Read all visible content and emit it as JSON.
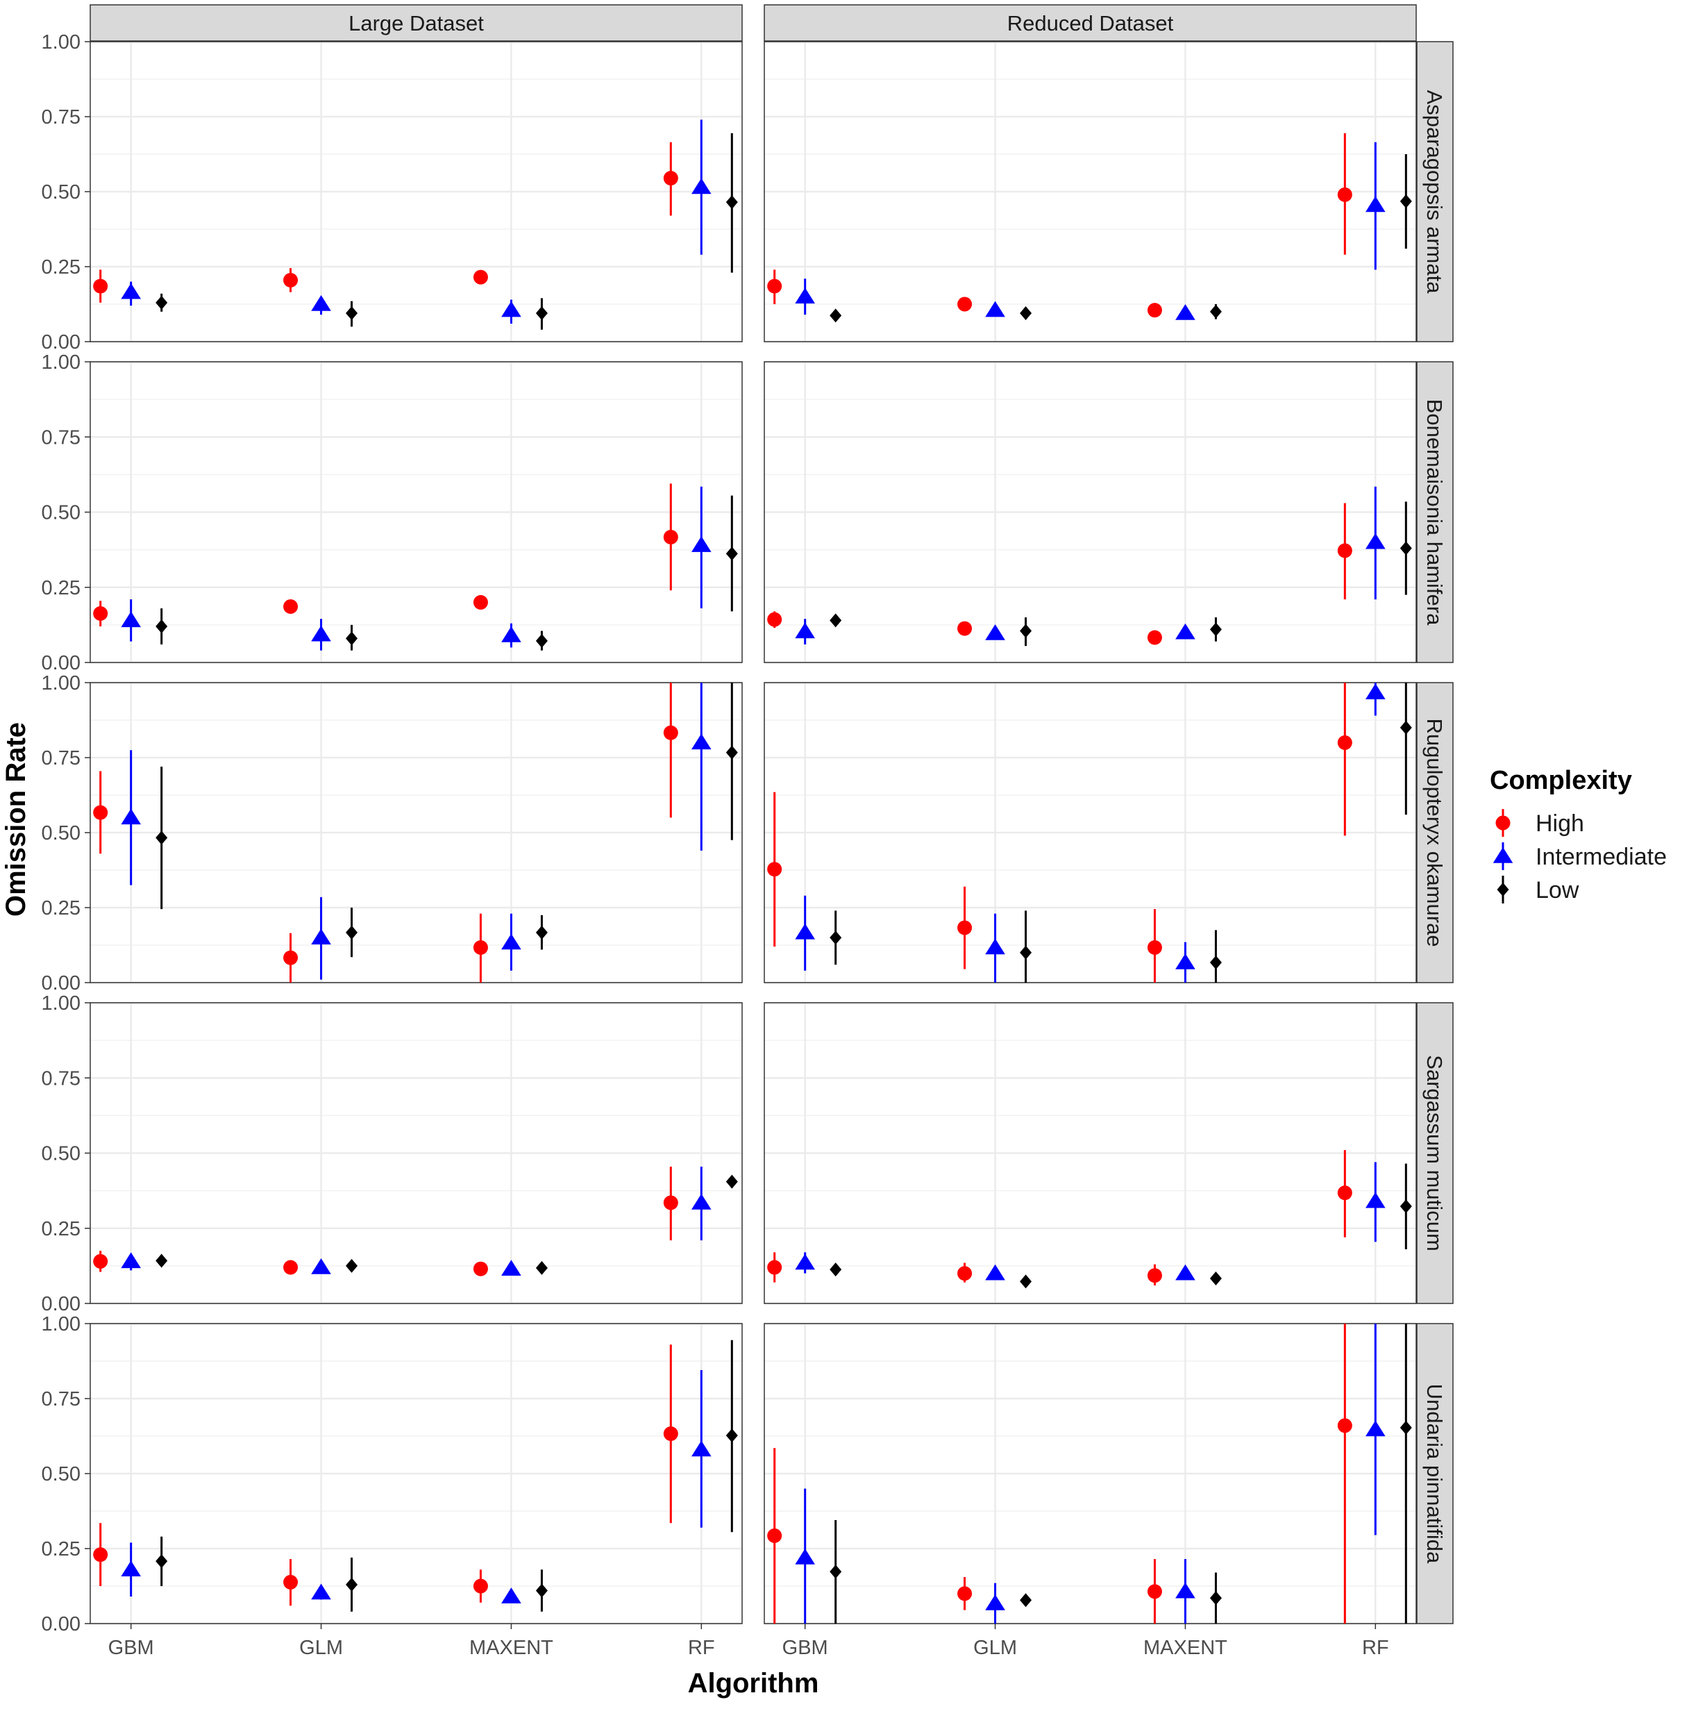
{
  "chart_data": {
    "type": "scatter",
    "subtype": "point-range facet grid",
    "xlabel": "Algorithm",
    "ylabel": "Omission Rate",
    "categories": [
      "GBM",
      "GLM",
      "MAXENT",
      "RF"
    ],
    "ylim": [
      0,
      1
    ],
    "yticks": [
      "0.00",
      "0.25",
      "0.50",
      "0.75",
      "1.00"
    ],
    "grid": true,
    "legend": {
      "title": "Complexity",
      "position": "right",
      "items": [
        {
          "name": "High",
          "color": "#ff0000",
          "shape": "circle"
        },
        {
          "name": "Intermediate",
          "color": "#0000ff",
          "shape": "triangle"
        },
        {
          "name": "Low",
          "color": "#000000",
          "shape": "diamond"
        }
      ]
    },
    "columns": [
      "Large Dataset",
      "Reduced Dataset"
    ],
    "rows": [
      "Asparagopsis armata",
      "Bonemaisonia hamifera",
      "Rugulopteryx okamurae",
      "Sargassum muticum",
      "Undaria pinnatifida"
    ],
    "panels": [
      {
        "row": "Asparagopsis armata",
        "column": "Large Dataset",
        "points": {
          "High": [
            [
              0.185,
              0.13,
              0.24
            ],
            [
              0.205,
              0.165,
              0.245
            ],
            [
              0.215,
              0.2,
              0.23
            ],
            [
              0.545,
              0.42,
              0.665
            ]
          ],
          "Intermediate": [
            [
              0.165,
              0.12,
              0.2
            ],
            [
              0.125,
              0.09,
              0.15
            ],
            [
              0.105,
              0.06,
              0.14
            ],
            [
              0.515,
              0.29,
              0.74
            ]
          ],
          "Low": [
            [
              0.13,
              0.1,
              0.16
            ],
            [
              0.095,
              0.05,
              0.135
            ],
            [
              0.095,
              0.04,
              0.145
            ],
            [
              0.465,
              0.23,
              0.695
            ]
          ]
        }
      },
      {
        "row": "Asparagopsis armata",
        "column": "Reduced Dataset",
        "points": {
          "High": [
            [
              0.185,
              0.125,
              0.24
            ],
            [
              0.125,
              0.11,
              0.14
            ],
            [
              0.105,
              0.09,
              0.12
            ],
            [
              0.49,
              0.29,
              0.695
            ]
          ],
          "Intermediate": [
            [
              0.15,
              0.09,
              0.21
            ],
            [
              0.105,
              0.09,
              0.12
            ],
            [
              0.095,
              0.085,
              0.105
            ],
            [
              0.455,
              0.24,
              0.665
            ]
          ],
          "Low": [
            [
              0.087,
              0.077,
              0.097
            ],
            [
              0.095,
              0.075,
              0.115
            ],
            [
              0.1,
              0.075,
              0.125
            ],
            [
              0.468,
              0.31,
              0.625
            ]
          ]
        }
      },
      {
        "row": "Bonemaisonia hamifera",
        "column": "Large Dataset",
        "points": {
          "High": [
            [
              0.163,
              0.12,
              0.205
            ],
            [
              0.186,
              0.17,
              0.2
            ],
            [
              0.2,
              0.19,
              0.21
            ],
            [
              0.417,
              0.24,
              0.595
            ]
          ],
          "Intermediate": [
            [
              0.14,
              0.07,
              0.21
            ],
            [
              0.093,
              0.04,
              0.145
            ],
            [
              0.09,
              0.05,
              0.13
            ],
            [
              0.39,
              0.18,
              0.585
            ]
          ],
          "Low": [
            [
              0.12,
              0.06,
              0.18
            ],
            [
              0.08,
              0.04,
              0.125
            ],
            [
              0.072,
              0.04,
              0.105
            ],
            [
              0.362,
              0.17,
              0.555
            ]
          ]
        }
      },
      {
        "row": "Bonemaisonia hamifera",
        "column": "Reduced Dataset",
        "points": {
          "High": [
            [
              0.143,
              0.115,
              0.17
            ],
            [
              0.113,
              0.1,
              0.126
            ],
            [
              0.083,
              0.07,
              0.096
            ],
            [
              0.372,
              0.21,
              0.53
            ]
          ],
          "Intermediate": [
            [
              0.103,
              0.06,
              0.145
            ],
            [
              0.097,
              0.085,
              0.11
            ],
            [
              0.1,
              0.085,
              0.12
            ],
            [
              0.4,
              0.21,
              0.585
            ]
          ],
          "Low": [
            [
              0.14,
              0.13,
              0.15
            ],
            [
              0.105,
              0.055,
              0.15
            ],
            [
              0.11,
              0.07,
              0.15
            ],
            [
              0.38,
              0.225,
              0.535
            ]
          ]
        }
      },
      {
        "row": "Rugulopteryx okamurae",
        "column": "Large Dataset",
        "points": {
          "High": [
            [
              0.567,
              0.43,
              0.705
            ],
            [
              0.083,
              0.0,
              0.165
            ],
            [
              0.117,
              0.0,
              0.23
            ],
            [
              0.833,
              0.55,
              1.0
            ]
          ],
          "Intermediate": [
            [
              0.55,
              0.325,
              0.775
            ],
            [
              0.15,
              0.01,
              0.285
            ],
            [
              0.133,
              0.04,
              0.23
            ],
            [
              0.8,
              0.44,
              1.0
            ]
          ],
          "Low": [
            [
              0.483,
              0.245,
              0.72
            ],
            [
              0.167,
              0.085,
              0.25
            ],
            [
              0.167,
              0.11,
              0.225
            ],
            [
              0.767,
              0.475,
              1.0
            ]
          ]
        }
      },
      {
        "row": "Rugulopteryx okamurae",
        "column": "Reduced Dataset",
        "points": {
          "High": [
            [
              0.378,
              0.12,
              0.635
            ],
            [
              0.183,
              0.045,
              0.32
            ],
            [
              0.117,
              0.0,
              0.245
            ],
            [
              0.8,
              0.49,
              1.0
            ]
          ],
          "Intermediate": [
            [
              0.167,
              0.04,
              0.29
            ],
            [
              0.117,
              0.0,
              0.23
            ],
            [
              0.067,
              0.0,
              0.135
            ],
            [
              0.967,
              0.89,
              1.0
            ]
          ],
          "Low": [
            [
              0.15,
              0.06,
              0.24
            ],
            [
              0.1,
              0.0,
              0.24
            ],
            [
              0.067,
              0.0,
              0.175
            ],
            [
              0.85,
              0.56,
              1.0
            ]
          ]
        }
      },
      {
        "row": "Sargassum muticum",
        "column": "Large Dataset",
        "points": {
          "High": [
            [
              0.14,
              0.105,
              0.175
            ],
            [
              0.12,
              0.11,
              0.13
            ],
            [
              0.115,
              0.105,
              0.125
            ],
            [
              0.335,
              0.21,
              0.455
            ]
          ],
          "Intermediate": [
            [
              0.14,
              0.11,
              0.165
            ],
            [
              0.12,
              0.105,
              0.135
            ],
            [
              0.115,
              0.1,
              0.13
            ],
            [
              0.335,
              0.21,
              0.455
            ]
          ],
          "Low": [
            [
              0.142,
              0.127,
              0.157
            ],
            [
              0.125,
              0.115,
              0.135
            ],
            [
              0.118,
              0.108,
              0.128
            ],
            [
              0.405,
              0.385,
              0.425
            ]
          ]
        }
      },
      {
        "row": "Sargassum muticum",
        "column": "Reduced Dataset",
        "points": {
          "High": [
            [
              0.12,
              0.07,
              0.17
            ],
            [
              0.1,
              0.07,
              0.135
            ],
            [
              0.093,
              0.06,
              0.13
            ],
            [
              0.368,
              0.22,
              0.51
            ]
          ],
          "Intermediate": [
            [
              0.135,
              0.1,
              0.17
            ],
            [
              0.1,
              0.085,
              0.115
            ],
            [
              0.1,
              0.08,
              0.12
            ],
            [
              0.34,
              0.205,
              0.47
            ]
          ],
          "Low": [
            [
              0.113,
              0.1,
              0.126
            ],
            [
              0.073,
              0.055,
              0.09
            ],
            [
              0.083,
              0.07,
              0.096
            ],
            [
              0.323,
              0.18,
              0.465
            ]
          ]
        }
      },
      {
        "row": "Undaria pinnatifida",
        "column": "Large Dataset",
        "points": {
          "High": [
            [
              0.23,
              0.125,
              0.335
            ],
            [
              0.138,
              0.06,
              0.215
            ],
            [
              0.125,
              0.07,
              0.18
            ],
            [
              0.633,
              0.335,
              0.93
            ]
          ],
          "Intermediate": [
            [
              0.18,
              0.09,
              0.27
            ],
            [
              0.103,
              0.08,
              0.126
            ],
            [
              0.09,
              0.07,
              0.11
            ],
            [
              0.58,
              0.32,
              0.845
            ]
          ],
          "Low": [
            [
              0.208,
              0.125,
              0.29
            ],
            [
              0.13,
              0.04,
              0.22
            ],
            [
              0.11,
              0.04,
              0.18
            ],
            [
              0.627,
              0.305,
              0.945
            ]
          ]
        }
      },
      {
        "row": "Undaria pinnatifida",
        "column": "Reduced Dataset",
        "points": {
          "High": [
            [
              0.293,
              0.0,
              0.585
            ],
            [
              0.1,
              0.045,
              0.155
            ],
            [
              0.107,
              0.0,
              0.215
            ],
            [
              0.66,
              0.0,
              1.0
            ]
          ],
          "Intermediate": [
            [
              0.22,
              0.0,
              0.45
            ],
            [
              0.067,
              0.0,
              0.135
            ],
            [
              0.107,
              0.0,
              0.215
            ],
            [
              0.647,
              0.295,
              1.0
            ]
          ],
          "Low": [
            [
              0.173,
              0.0,
              0.345
            ],
            [
              0.078,
              0.06,
              0.096
            ],
            [
              0.085,
              0.0,
              0.17
            ],
            [
              0.653,
              0.0,
              1.0
            ]
          ]
        }
      }
    ]
  }
}
